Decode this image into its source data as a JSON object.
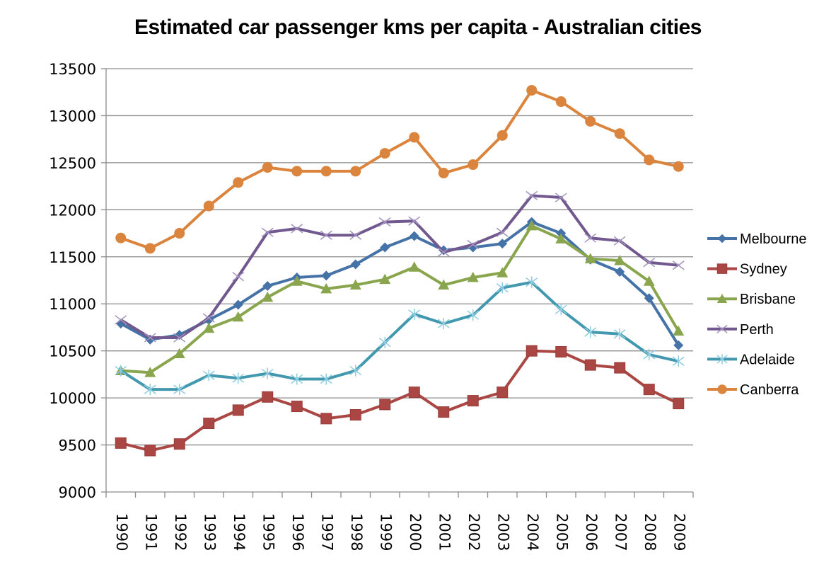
{
  "chart_data": {
    "type": "line",
    "title": "Estimated car passenger kms per capita - Australian cities",
    "xlabel": "",
    "ylabel": "",
    "ylim": [
      9000,
      13500
    ],
    "yticks": [
      9000,
      9500,
      10000,
      10500,
      11000,
      11500,
      12000,
      12500,
      13000,
      13500
    ],
    "grid": true,
    "legend_position": "right",
    "categories": [
      "1990",
      "1991",
      "1992",
      "1993",
      "1994",
      "1995",
      "1996",
      "1997",
      "1998",
      "1999",
      "2000",
      "2001",
      "2002",
      "2003",
      "2004",
      "2005",
      "2006",
      "2007",
      "2008",
      "2009"
    ],
    "series": [
      {
        "name": "Melbourne",
        "color": "#4573A7",
        "marker": "diamond",
        "values": [
          10790,
          10620,
          10670,
          10830,
          10990,
          11190,
          11280,
          11300,
          11420,
          11600,
          11720,
          11570,
          11600,
          11640,
          11870,
          11750,
          11470,
          11340,
          11060,
          10560
        ]
      },
      {
        "name": "Sydney",
        "color": "#AA4643",
        "marker": "square",
        "values": [
          9520,
          9440,
          9510,
          9730,
          9870,
          10010,
          9910,
          9780,
          9820,
          9930,
          10060,
          9850,
          9970,
          10060,
          10500,
          10490,
          10350,
          10320,
          10090,
          9940
        ]
      },
      {
        "name": "Brisbane",
        "color": "#89A54E",
        "marker": "triangle",
        "values": [
          10290,
          10270,
          10470,
          10740,
          10860,
          11070,
          11240,
          11160,
          11200,
          11260,
          11390,
          11200,
          11280,
          11330,
          11830,
          11690,
          11480,
          11460,
          11240,
          10710
        ]
      },
      {
        "name": "Perth",
        "color": "#71588F",
        "marker": "x",
        "values": [
          10830,
          10640,
          10640,
          10850,
          11290,
          11760,
          11800,
          11730,
          11730,
          11870,
          11880,
          11550,
          11630,
          11760,
          12150,
          12130,
          11700,
          11670,
          11440,
          11410
        ]
      },
      {
        "name": "Adelaide",
        "color": "#4198AF",
        "marker": "star",
        "values": [
          10290,
          10090,
          10090,
          10240,
          10210,
          10260,
          10200,
          10200,
          10290,
          10590,
          10890,
          10790,
          10880,
          11170,
          11230,
          10940,
          10700,
          10680,
          10460,
          10390
        ]
      },
      {
        "name": "Canberra",
        "color": "#DB843D",
        "marker": "circle",
        "values": [
          11700,
          11590,
          11750,
          12040,
          12290,
          12450,
          12410,
          12410,
          12410,
          12600,
          12770,
          12390,
          12480,
          12790,
          13270,
          13150,
          12940,
          12810,
          12530,
          12460
        ]
      }
    ]
  }
}
